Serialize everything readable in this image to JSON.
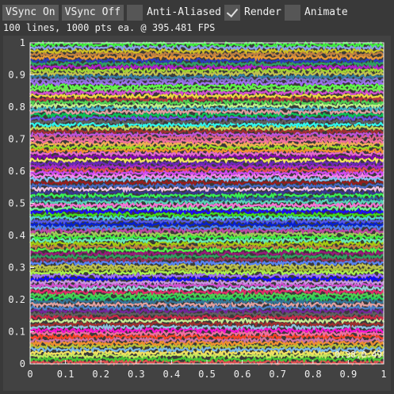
{
  "toolbar": {
    "vsync_on_label": "VSync On",
    "vsync_off_label": "VSync Off",
    "anti_aliased_label": "Anti-Aliased",
    "anti_aliased_checked": false,
    "render_label": "Render",
    "render_checked": true,
    "animate_label": "Animate",
    "animate_checked": false
  },
  "status": {
    "text": "100 lines, 1000 pts ea. @ 395.481 FPS"
  },
  "plot": {
    "mouse_readout": "0.38,0.49",
    "line_colors": [
      "#e05050",
      "#50d050",
      "#5080f0",
      "#f0e060",
      "#d050d0",
      "#50d0d0",
      "#f09030",
      "#a070f0",
      "#70f090",
      "#f070a0",
      "#c0c050",
      "#3060a0",
      "#a03030",
      "#30a060",
      "#f0c0e0",
      "#606060",
      "#c08040",
      "#80c0f0",
      "#e0a0a0",
      "#40f040"
    ]
  },
  "chart_data": {
    "type": "line",
    "title": "",
    "xlabel": "",
    "ylabel": "",
    "xlim": [
      0,
      1
    ],
    "ylim": [
      0,
      1
    ],
    "x_ticks": [
      "0",
      "0.1",
      "0.2",
      "0.3",
      "0.4",
      "0.5",
      "0.6",
      "0.7",
      "0.8",
      "0.9",
      "1"
    ],
    "y_ticks": [
      "0",
      "0.1",
      "0.2",
      "0.3",
      "0.4",
      "0.5",
      "0.6",
      "0.7",
      "0.8",
      "0.9",
      "1"
    ],
    "series_count": 100,
    "points_per_series": 1000,
    "series_description": "100 noisy horizontal lines, each jittering around a constant offset i/100 + 0.005",
    "grid": false,
    "legend": "none"
  }
}
